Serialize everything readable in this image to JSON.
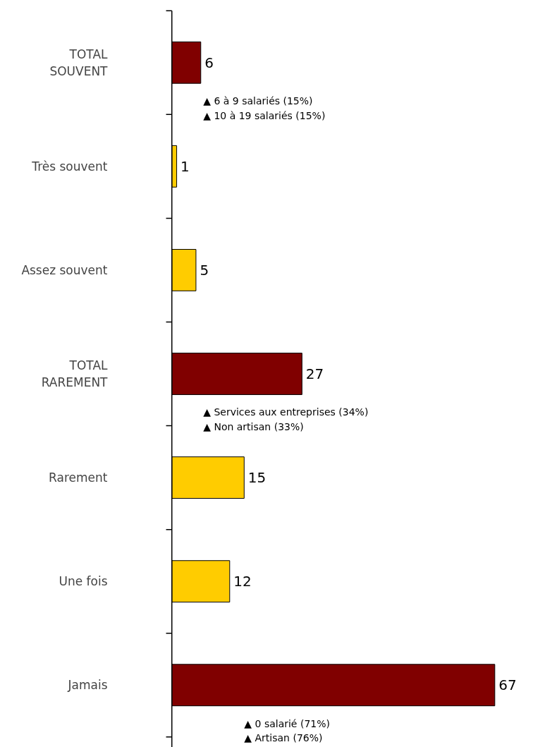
{
  "chart_data": {
    "type": "bar",
    "orientation": "horizontal",
    "data_labels": true,
    "categories": [
      "TOTAL\nSOUVENT",
      "Très souvent",
      "Assez souvent",
      "TOTAL\nRAREMENT",
      "Rarement",
      "Une fois",
      "Jamais"
    ],
    "values": [
      6,
      1,
      5,
      27,
      15,
      12,
      67
    ],
    "colors": [
      "#800000",
      "#ffcc00",
      "#ffcc00",
      "#800000",
      "#ffcc00",
      "#ffcc00",
      "#800000"
    ],
    "annotations": [
      "▲ 6 à 9 salariés (15%)",
      "▲ 10 à 19 salariés (15%)",
      "▲ Services aux entreprises (34%)",
      "▲ Non artisan (33%)",
      "▲ 0 salarié (71%)",
      "▲ Artisan (76%)"
    ],
    "grid": false
  }
}
